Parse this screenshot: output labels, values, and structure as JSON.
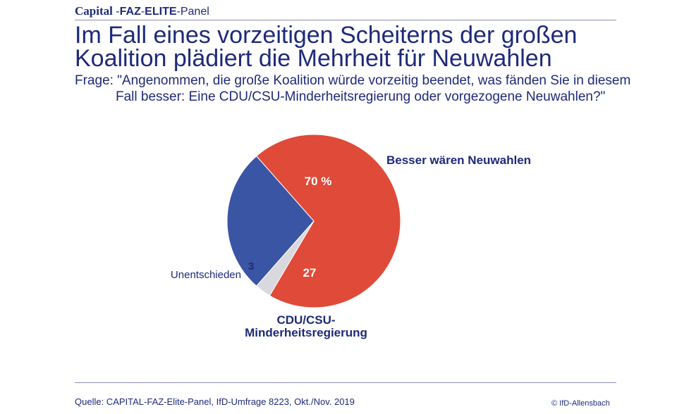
{
  "header": {
    "capital": "Capital",
    "sep1": " -",
    "faz": "FAZ",
    "sep2": "-",
    "elite": "ELITE",
    "panel": "-Panel"
  },
  "title": {
    "line1": "Im Fall eines vorzeitigen Scheiterns der großen",
    "line2": "Koalition plädiert die Mehrheit für Neuwahlen"
  },
  "question": {
    "line1": "Frage: \"Angenommen, die große Koalition würde vorzeitig beendet, was fänden Sie in diesem",
    "line2": "Fall besser: Eine CDU/CSU-Minderheitsregierung oder vorgezogene Neuwahlen?\""
  },
  "chart_data": {
    "type": "pie",
    "title": "Im Fall eines vorzeitigen Scheiterns der großen Koalition plädiert die Mehrheit für Neuwahlen",
    "slices": [
      {
        "label": "Besser wären Neuwahlen",
        "value": 70,
        "value_label": "70 %",
        "color": "#e04a38"
      },
      {
        "label": "CDU/CSU-Minderheitsregierung",
        "label_lines": [
          "CDU/CSU-",
          "Minderheitsregierung"
        ],
        "value": 27,
        "value_label": "27",
        "color": "#3a55a4"
      },
      {
        "label": "Unentschieden",
        "value": 3,
        "value_label": "3",
        "color": "#d8d8de"
      }
    ]
  },
  "footer": {
    "source": "Quelle: CAPITAL-FAZ-Elite-Panel, IfD-Umfrage 8223, Okt./Nov. 2019",
    "copyright": "© IfD-Allensbach"
  },
  "colors": {
    "text": "#1e2a78",
    "rule": "#8a8fb0"
  }
}
